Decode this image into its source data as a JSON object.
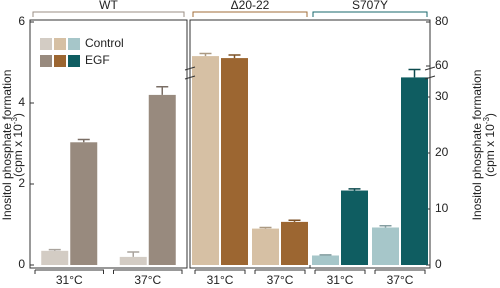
{
  "chart_data": [
    {
      "type": "bar",
      "y_label": "Inositol phosphate formation",
      "y_label_unit": "(cpm x 10",
      "y_label_exp": "-3",
      "y_label_close": ")",
      "ylim": [
        0,
        6
      ],
      "yticks": [
        0,
        2,
        4,
        6
      ],
      "groups": [
        {
          "name": "WT",
          "color": "#9b8f84",
          "categories": [
            "31°C",
            "37°C"
          ],
          "series": [
            {
              "name": "Control",
              "color": "#d3ccc4",
              "values": [
                0.35,
                0.2
              ],
              "errors": [
                0.03,
                0.12
              ]
            },
            {
              "name": "EGF",
              "color": "#988a7e",
              "values": [
                3.03,
                4.2
              ],
              "errors": [
                0.07,
                0.2
              ]
            }
          ]
        }
      ]
    },
    {
      "type": "bar",
      "y_label": "Inositol phosphate formation",
      "y_label_unit": "(cpm x 10",
      "y_label_exp": "-3",
      "y_label_close": ")",
      "ylim": [
        0,
        80
      ],
      "axis_break": [
        35,
        55
      ],
      "yticks": [
        0,
        10,
        20,
        30,
        60,
        80
      ],
      "groups": [
        {
          "name": "Δ20-22",
          "color": "#a06c38",
          "categories": [
            "31°C",
            "37°C"
          ],
          "series": [
            {
              "name": "Control",
              "color": "#d6c0a4",
              "values": [
                64.5,
                6.5
              ],
              "errors": [
                1.2,
                0.2
              ]
            },
            {
              "name": "EGF",
              "color": "#9c6631",
              "values": [
                63.6,
                7.7
              ],
              "errors": [
                1.4,
                0.3
              ]
            }
          ]
        },
        {
          "name": "S707Y",
          "color": "#17676b",
          "categories": [
            "31°C",
            "37°C"
          ],
          "series": [
            {
              "name": "Control",
              "color": "#a6c6c9",
              "values": [
                1.7,
                6.7
              ],
              "errors": [
                0.1,
                0.3
              ]
            },
            {
              "name": "EGF",
              "color": "#0f5d61",
              "values": [
                13.3,
                33.5
              ],
              "errors": [
                0.3,
                1.4
              ]
            }
          ]
        }
      ]
    }
  ]
}
